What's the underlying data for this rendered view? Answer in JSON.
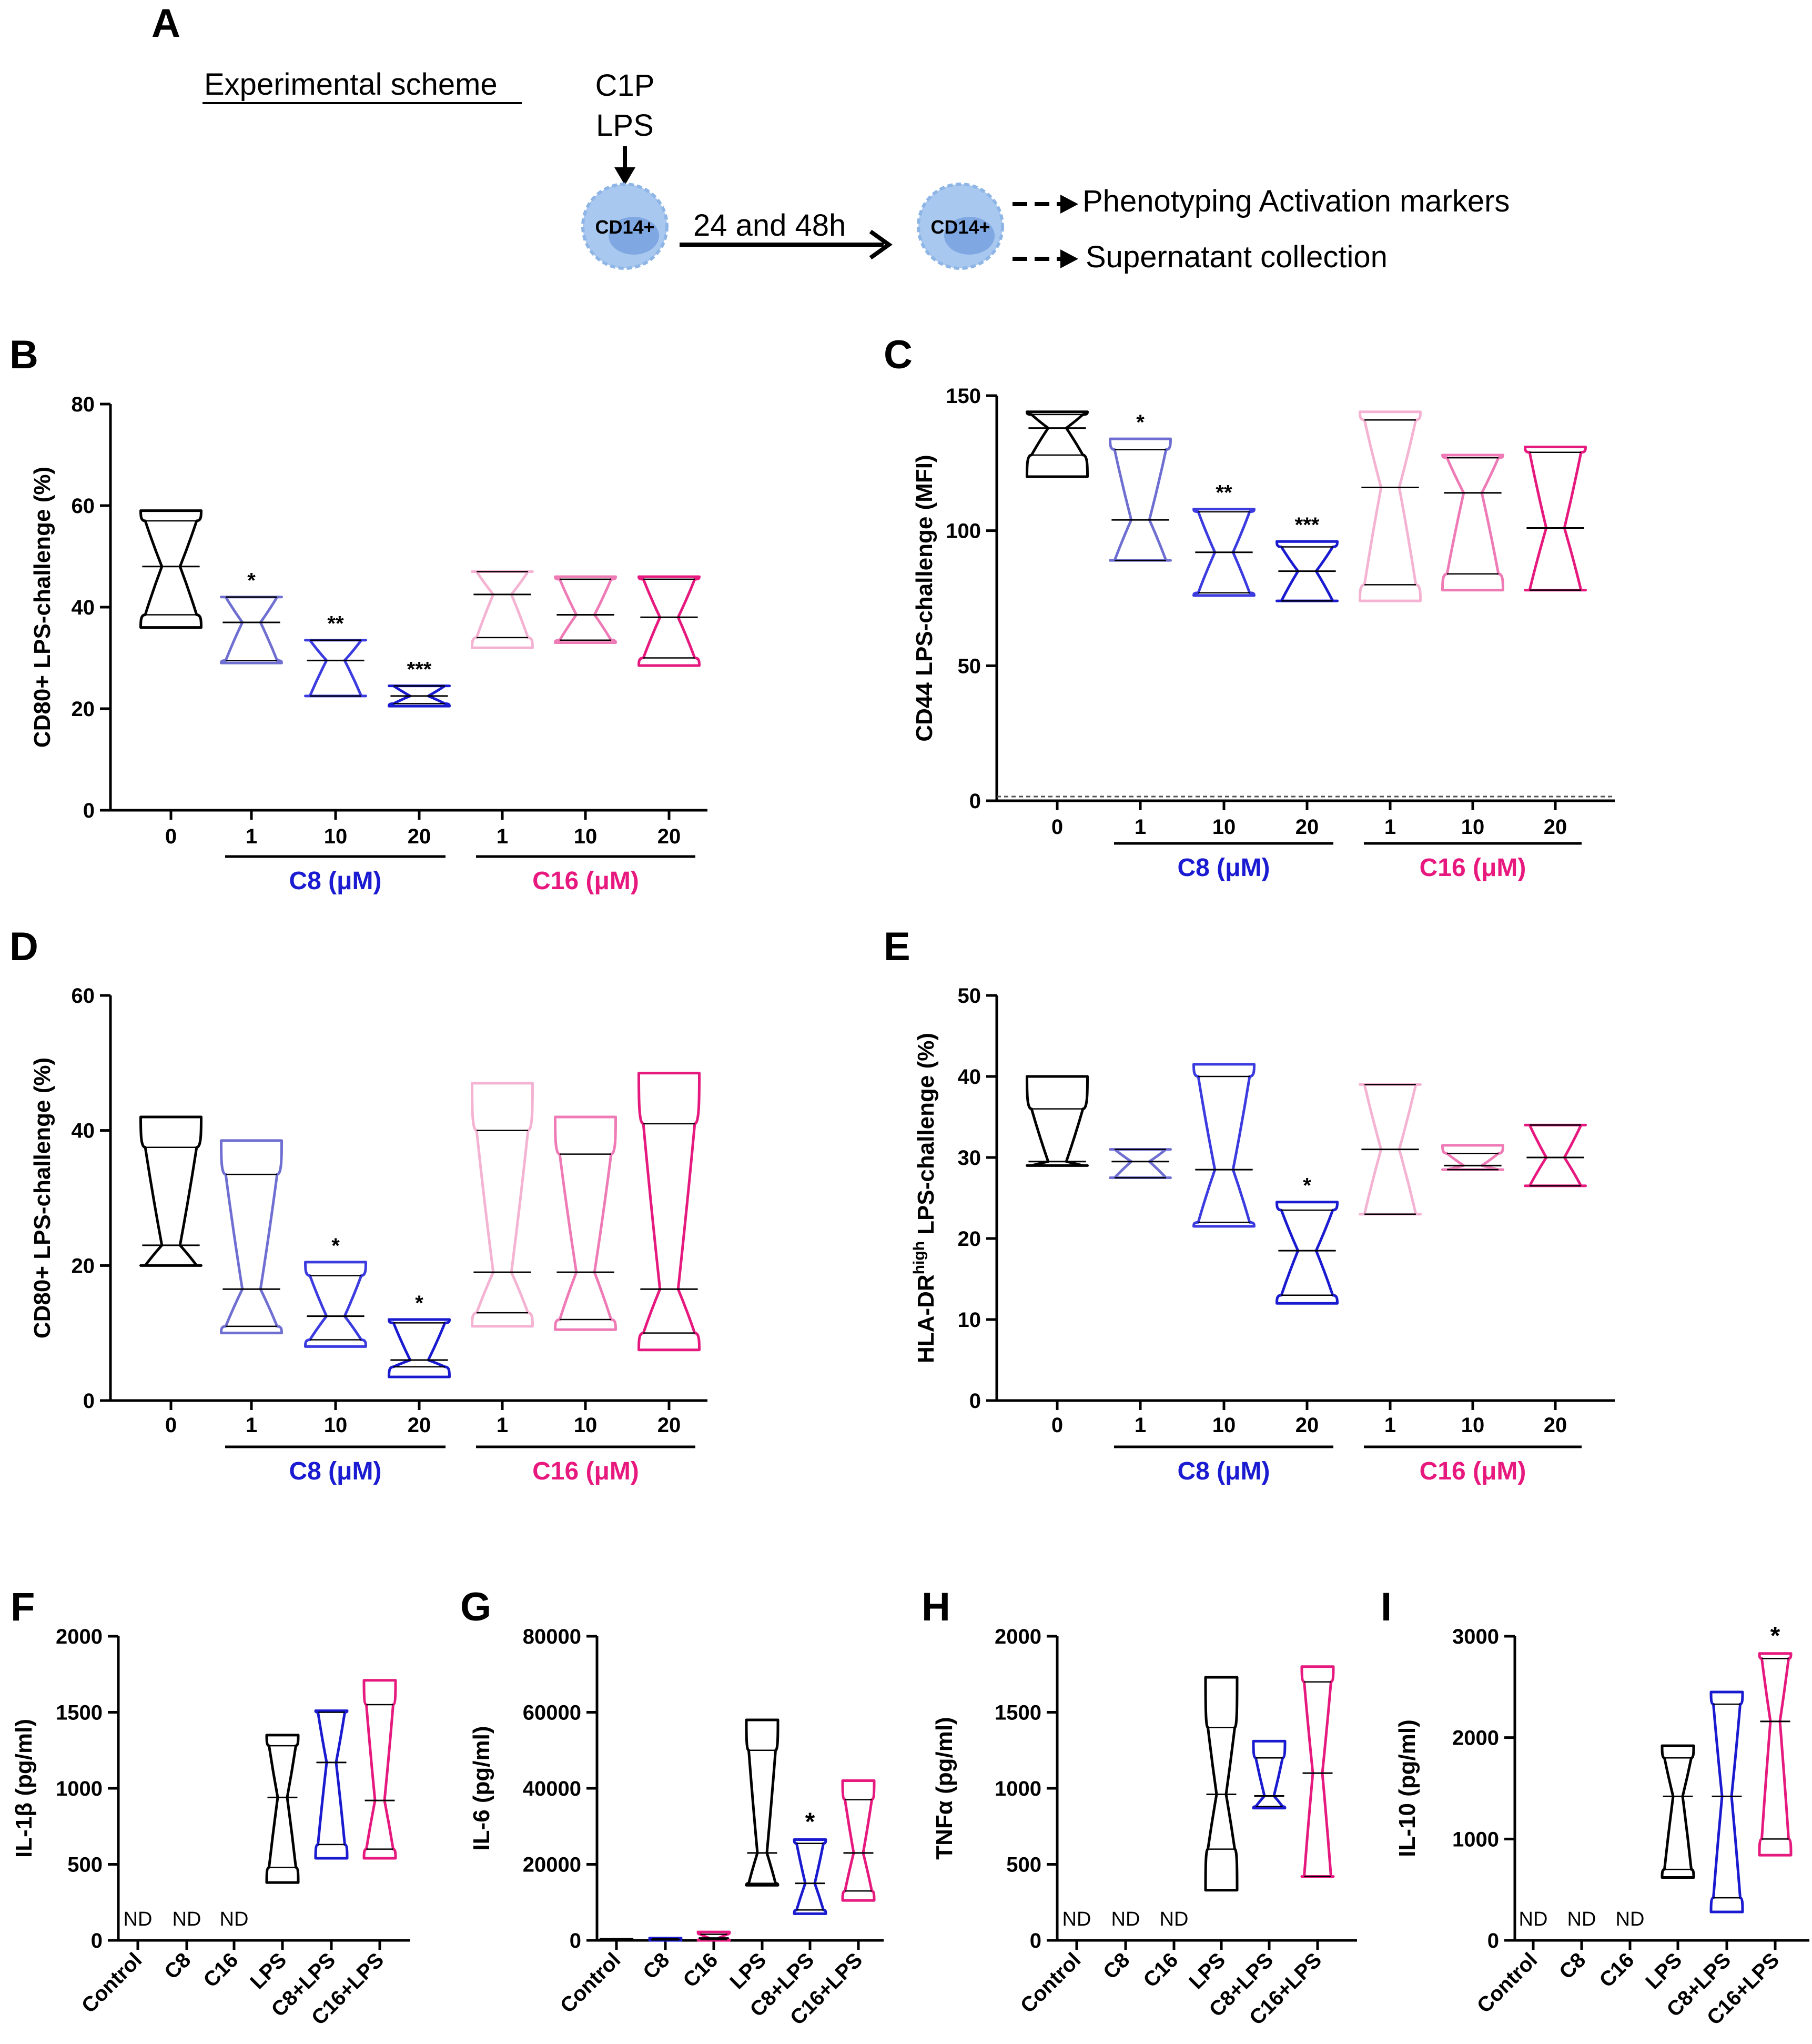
{
  "scheme": {
    "panel_letter": "A",
    "title": "Experimental scheme",
    "treatment_line1": "C1P",
    "treatment_line2": "LPS",
    "cell_label": "CD14+",
    "time_label": "24 and 48h",
    "output1": "Phenotyping Activation markers",
    "output2": "Supernatant collection"
  },
  "colors": {
    "control": "#000000",
    "c8_1": "#6f6fd2",
    "c8_10": "#3b3be0",
    "c8_20": "#1a1ad0",
    "c16_1": "#f5b3d3",
    "c16_10": "#ee7ab6",
    "c16_20": "#e6197f",
    "c8_label": "#1b1bd1",
    "c16_label": "#e8197e",
    "cell_fill": "#a9c8ef",
    "cell_nucleus": "#7fa8e3"
  },
  "chart_data": [
    {
      "panel": "B",
      "type": "violin",
      "ylabel": "CD80+ LPS-challenge (%)",
      "ylim": [
        0,
        80
      ],
      "yticks": [
        0,
        20,
        40,
        60,
        80
      ],
      "categories": [
        "0",
        "1",
        "10",
        "20",
        "1",
        "10",
        "20"
      ],
      "groups": [
        {
          "label": "C8 (μM)",
          "from": 1,
          "to": 3,
          "color": "c8_label"
        },
        {
          "label": "C16 (μM)",
          "from": 4,
          "to": 6,
          "color": "c16_label"
        }
      ],
      "series": [
        {
          "category": "0",
          "color": "control",
          "min": 36,
          "max": 59,
          "median": 48,
          "q1": 38.5,
          "q3": 57
        },
        {
          "category": "1",
          "color": "c8_1",
          "min": 29,
          "max": 42,
          "median": 37,
          "q1": 29.5,
          "q3": 42
        },
        {
          "category": "10",
          "color": "c8_10",
          "min": 22.5,
          "max": 33.5,
          "median": 29.5,
          "q1": 22.5,
          "q3": 33.5
        },
        {
          "category": "20",
          "color": "c8_20",
          "min": 20.5,
          "max": 24.5,
          "median": 22.5,
          "q1": 21,
          "q3": 24.5
        },
        {
          "category": "1",
          "color": "c16_1",
          "min": 32,
          "max": 47,
          "median": 42.5,
          "q1": 34,
          "q3": 47
        },
        {
          "category": "10",
          "color": "c16_10",
          "min": 33,
          "max": 46,
          "median": 38.5,
          "q1": 33.5,
          "q3": 45.5
        },
        {
          "category": "20",
          "color": "c16_20",
          "min": 28.5,
          "max": 46,
          "median": 38,
          "q1": 30,
          "q3": 45.5
        }
      ],
      "annotations": [
        {
          "category_index": 1,
          "label": "*"
        },
        {
          "category_index": 2,
          "label": "**"
        },
        {
          "category_index": 3,
          "label": "***"
        }
      ]
    },
    {
      "panel": "C",
      "type": "violin",
      "ylabel": "CD44 LPS-challenge (MFI)",
      "ylim": [
        0,
        150
      ],
      "yticks": [
        0,
        50,
        100,
        150
      ],
      "categories": [
        "0",
        "1",
        "10",
        "20",
        "1",
        "10",
        "20"
      ],
      "groups": [
        {
          "label": "C8 (μM)",
          "from": 1,
          "to": 3,
          "color": "c8_label"
        },
        {
          "label": "C16 (μM)",
          "from": 4,
          "to": 6,
          "color": "c16_label"
        }
      ],
      "series": [
        {
          "category": "0",
          "color": "control",
          "min": 120,
          "max": 144,
          "median": 138,
          "q1": 128,
          "q3": 143
        },
        {
          "category": "1",
          "color": "c8_1",
          "min": 89,
          "max": 134,
          "median": 104,
          "q1": 89,
          "q3": 130
        },
        {
          "category": "10",
          "color": "c8_10",
          "min": 76,
          "max": 108,
          "median": 92,
          "q1": 77,
          "q3": 107
        },
        {
          "category": "20",
          "color": "c8_20",
          "min": 74,
          "max": 96,
          "median": 85,
          "q1": 74,
          "q3": 94
        },
        {
          "category": "1",
          "color": "c16_1",
          "min": 74,
          "max": 144,
          "median": 116,
          "q1": 80,
          "q3": 141
        },
        {
          "category": "10",
          "color": "c16_10",
          "min": 78,
          "max": 128,
          "median": 114,
          "q1": 84,
          "q3": 127
        },
        {
          "category": "20",
          "color": "c16_20",
          "min": 78,
          "max": 131,
          "median": 101,
          "q1": 78,
          "q3": 129
        }
      ],
      "annotations": [
        {
          "category_index": 1,
          "label": "*"
        },
        {
          "category_index": 2,
          "label": "**"
        },
        {
          "category_index": 3,
          "label": "***"
        }
      ]
    },
    {
      "panel": "D",
      "type": "violin",
      "ylabel": "CD80+ LPS-challenge (%)",
      "ylim": [
        0,
        60
      ],
      "yticks": [
        0,
        20,
        40,
        60
      ],
      "categories": [
        "0",
        "1",
        "10",
        "20",
        "1",
        "10",
        "20"
      ],
      "groups": [
        {
          "label": "C8 (μM)",
          "from": 1,
          "to": 3,
          "color": "c8_label"
        },
        {
          "label": "C16 (μM)",
          "from": 4,
          "to": 6,
          "color": "c16_label"
        }
      ],
      "series": [
        {
          "category": "0",
          "color": "control",
          "min": 20,
          "max": 42,
          "median": 23,
          "q1": 20,
          "q3": 37.5
        },
        {
          "category": "1",
          "color": "c8_1",
          "min": 10,
          "max": 38.5,
          "median": 16.5,
          "q1": 11,
          "q3": 33.5
        },
        {
          "category": "10",
          "color": "c8_10",
          "min": 8,
          "max": 20.5,
          "median": 12.5,
          "q1": 9,
          "q3": 18.5
        },
        {
          "category": "20",
          "color": "c8_20",
          "min": 3.5,
          "max": 12,
          "median": 6,
          "q1": 5,
          "q3": 11.5
        },
        {
          "category": "1",
          "color": "c16_1",
          "min": 11,
          "max": 47,
          "median": 19,
          "q1": 13,
          "q3": 40
        },
        {
          "category": "10",
          "color": "c16_10",
          "min": 10.5,
          "max": 42,
          "median": 19,
          "q1": 12,
          "q3": 36.5
        },
        {
          "category": "20",
          "color": "c16_20",
          "min": 7.5,
          "max": 48.5,
          "median": 16.5,
          "q1": 10,
          "q3": 41
        }
      ],
      "annotations": [
        {
          "category_index": 2,
          "label": "*"
        },
        {
          "category_index": 3,
          "label": "*"
        }
      ]
    },
    {
      "panel": "E",
      "type": "violin",
      "ylabel_main": "HLA-DR",
      "ylabel_sup": "high",
      "ylabel_rest": " LPS-challenge (%)",
      "ylim": [
        0,
        50
      ],
      "yticks": [
        0,
        10,
        20,
        30,
        40,
        50
      ],
      "categories": [
        "0",
        "1",
        "10",
        "20",
        "1",
        "10",
        "20"
      ],
      "groups": [
        {
          "label": "C8 (μM)",
          "from": 1,
          "to": 3,
          "color": "c8_label"
        },
        {
          "label": "C16 (μM)",
          "from": 4,
          "to": 6,
          "color": "c16_label"
        }
      ],
      "series": [
        {
          "category": "0",
          "color": "control",
          "min": 29,
          "max": 40,
          "median": 29.5,
          "q1": 29,
          "q3": 36
        },
        {
          "category": "1",
          "color": "c8_1",
          "min": 27.5,
          "max": 31,
          "median": 29.5,
          "q1": 27.5,
          "q3": 31
        },
        {
          "category": "10",
          "color": "c8_10",
          "min": 21.5,
          "max": 41.5,
          "median": 28.5,
          "q1": 22,
          "q3": 40
        },
        {
          "category": "20",
          "color": "c8_20",
          "min": 12,
          "max": 24.5,
          "median": 18.5,
          "q1": 13,
          "q3": 23.5
        },
        {
          "category": "1",
          "color": "c16_1",
          "min": 23,
          "max": 39,
          "median": 31,
          "q1": 23,
          "q3": 39
        },
        {
          "category": "10",
          "color": "c16_10",
          "min": 28.5,
          "max": 31.5,
          "median": 29,
          "q1": 28.5,
          "q3": 30.5
        },
        {
          "category": "20",
          "color": "c16_20",
          "min": 26.5,
          "max": 34,
          "median": 30,
          "q1": 26.5,
          "q3": 34
        }
      ],
      "annotations": [
        {
          "category_index": 3,
          "label": "*"
        }
      ]
    },
    {
      "panel": "F",
      "type": "violin",
      "ylabel": "IL-1β (pg/ml)",
      "ylim": [
        0,
        2000
      ],
      "yticks": [
        0,
        500,
        1000,
        1500,
        2000
      ],
      "categories": [
        "Control",
        "C8",
        "C16",
        "LPS",
        "C8+LPS",
        "C16+LPS"
      ],
      "nd_label": "ND",
      "series": [
        {
          "category": "LPS",
          "color": "control",
          "min": 380,
          "max": 1350,
          "median": 940,
          "q1": 480,
          "q3": 1280
        },
        {
          "category": "C8+LPS",
          "color": "c8_20",
          "min": 540,
          "max": 1510,
          "median": 1170,
          "q1": 630,
          "q3": 1500
        },
        {
          "category": "C16+LPS",
          "color": "c16_20",
          "min": 540,
          "max": 1710,
          "median": 920,
          "q1": 600,
          "q3": 1550
        }
      ],
      "annotations": []
    },
    {
      "panel": "G",
      "type": "violin",
      "ylabel": "IL-6 (pg/ml)",
      "ylim": [
        0,
        80000
      ],
      "yticks": [
        0,
        20000,
        40000,
        60000,
        80000
      ],
      "categories": [
        "Control",
        "C8",
        "C16",
        "LPS",
        "C8+LPS",
        "C16+LPS"
      ],
      "series": [
        {
          "category": "Control",
          "color": "control",
          "min": 0,
          "max": 300,
          "median": 100,
          "q1": 50,
          "q3": 200
        },
        {
          "category": "C8",
          "color": "c8_20",
          "min": 0,
          "max": 600,
          "median": 200,
          "q1": 100,
          "q3": 400
        },
        {
          "category": "C16",
          "color": "c16_20",
          "min": 0,
          "max": 2200,
          "median": 600,
          "q1": 200,
          "q3": 1600
        },
        {
          "category": "LPS",
          "color": "control",
          "min": 14500,
          "max": 58000,
          "median": 23000,
          "q1": 15000,
          "q3": 50000
        },
        {
          "category": "C8+LPS",
          "color": "c8_20",
          "min": 7000,
          "max": 26500,
          "median": 15000,
          "q1": 8000,
          "q3": 25500
        },
        {
          "category": "C16+LPS",
          "color": "c16_20",
          "min": 10500,
          "max": 42000,
          "median": 23000,
          "q1": 13000,
          "q3": 37000
        }
      ],
      "annotations": [
        {
          "category_index": 4,
          "label": "*"
        }
      ]
    },
    {
      "panel": "H",
      "type": "violin",
      "ylabel": "TNFα (pg/ml)",
      "ylim": [
        0,
        2000
      ],
      "yticks": [
        0,
        500,
        1000,
        1500,
        2000
      ],
      "categories": [
        "Control",
        "C8",
        "C16",
        "LPS",
        "C8+LPS",
        "C16+LPS"
      ],
      "nd_label": "ND",
      "series": [
        {
          "category": "LPS",
          "color": "control",
          "min": 330,
          "max": 1730,
          "median": 960,
          "q1": 600,
          "q3": 1400
        },
        {
          "category": "C8+LPS",
          "color": "c8_20",
          "min": 870,
          "max": 1310,
          "median": 950,
          "q1": 880,
          "q3": 1200
        },
        {
          "category": "C16+LPS",
          "color": "c16_20",
          "min": 420,
          "max": 1800,
          "median": 1100,
          "q1": 420,
          "q3": 1700
        }
      ],
      "annotations": []
    },
    {
      "panel": "I",
      "type": "violin",
      "ylabel": "IL-10 (pg/ml)",
      "ylim": [
        0,
        3000
      ],
      "yticks": [
        0,
        1000,
        2000,
        3000
      ],
      "categories": [
        "Control",
        "C8",
        "C16",
        "LPS",
        "C8+LPS",
        "C16+LPS"
      ],
      "nd_label": "ND",
      "series": [
        {
          "category": "LPS",
          "color": "control",
          "min": 620,
          "max": 1920,
          "median": 1420,
          "q1": 700,
          "q3": 1800
        },
        {
          "category": "C8+LPS",
          "color": "c8_20",
          "min": 280,
          "max": 2450,
          "median": 1420,
          "q1": 420,
          "q3": 2330
        },
        {
          "category": "C16+LPS",
          "color": "c16_20",
          "min": 840,
          "max": 2830,
          "median": 2160,
          "q1": 1000,
          "q3": 2780
        }
      ],
      "annotations": [
        {
          "category_index": 5,
          "label": "*"
        }
      ]
    }
  ]
}
